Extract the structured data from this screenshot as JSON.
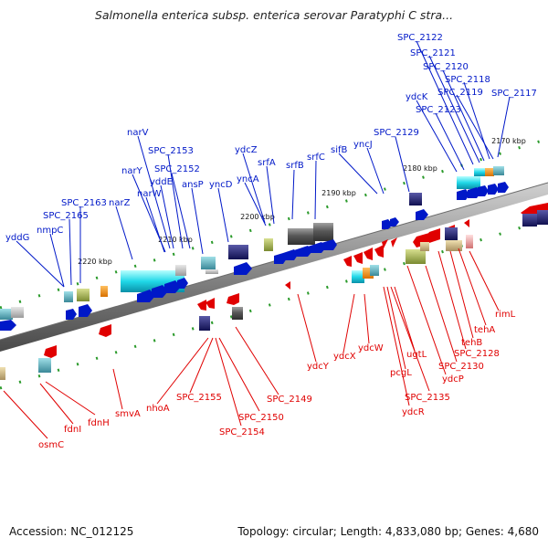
{
  "title": "Salmonella enterica subsp. enterica serovar Paratyphi C stra...",
  "footer": {
    "accession": "Accession: NC_012125",
    "summary": "Topology: circular; Length: 4,833,080 bp; Genes: 4,680"
  },
  "colors": {
    "forward": "#0018c8",
    "reverse": "#e00000",
    "backbone": "#8a8a8a",
    "tick": "#2a9a2a"
  },
  "scale_marks": [
    "2170 kbp",
    "2180 kbp",
    "2190 kbp",
    "2200 kbp",
    "2210 kbp",
    "2220 kbp"
  ],
  "forward_genes": [
    "SPC_2122",
    "SPC_2121",
    "SPC_2120",
    "SPC_2118",
    "SPC_2119",
    "SPC_2117",
    "ydcK",
    "SPC_2123",
    "SPC_2129",
    "yncJ",
    "sifB",
    "srfC",
    "srfB",
    "srfA",
    "ydcZ",
    "yncA",
    "yncD",
    "ansP",
    "SPC_2152",
    "SPC_2153",
    "narV",
    "yddE",
    "narY",
    "narW",
    "narZ",
    "SPC_2163",
    "SPC_2165",
    "nmpC",
    "yddG"
  ],
  "reverse_genes": [
    "rimL",
    "tehA",
    "tehB",
    "SPC_2128",
    "SPC_2130",
    "ydcP",
    "ugtL",
    "SPC_2135",
    "pcgL",
    "ydcR",
    "ydcW",
    "ydcX",
    "ydcY",
    "SPC_2149",
    "SPC_2150",
    "SPC_2154",
    "SPC_2155",
    "nhoA",
    "smvA",
    "fdnH",
    "fdnI",
    "osmC"
  ]
}
